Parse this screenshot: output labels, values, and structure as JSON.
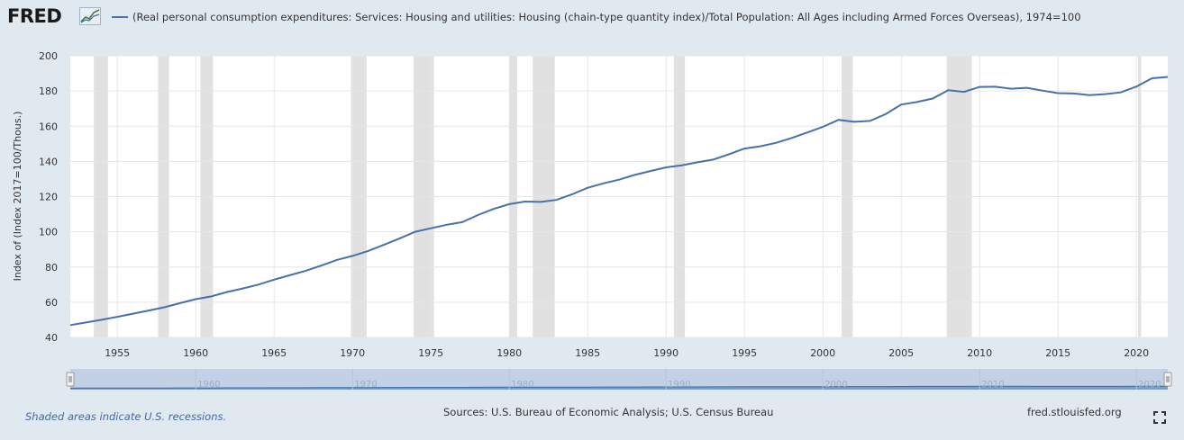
{
  "header": {
    "logo": "FRED",
    "logo_icon": "line-graph-icon",
    "legend_label": "(Real personal consumption expenditures: Services: Housing and utilities: Housing (chain-type quantity index)/Total Population: All Ages including Armed Forces Overseas), 1974=100"
  },
  "chart_data": {
    "type": "line",
    "ylabel": "Index of (Index 2017=100/Thous.)",
    "xlabel": "",
    "ylim": [
      40,
      200
    ],
    "xlim": [
      1952,
      2022
    ],
    "y_ticks": [
      "200",
      "180",
      "160",
      "140",
      "120",
      "100",
      "80",
      "60",
      "40"
    ],
    "x_ticks": [
      "1955",
      "1960",
      "1965",
      "1970",
      "1975",
      "1980",
      "1985",
      "1990",
      "1995",
      "2000",
      "2005",
      "2010",
      "2015",
      "2020"
    ],
    "navigator_ticks": [
      "1960",
      "1970",
      "1980",
      "1990",
      "2000",
      "2010",
      "2020"
    ],
    "grid": true,
    "line_color": "#4572a7",
    "recession_color": "#e1e1e1",
    "recessions": [
      [
        1953.5,
        1954.4
      ],
      [
        1957.6,
        1958.3
      ],
      [
        1960.3,
        1961.1
      ],
      [
        1969.9,
        1970.9
      ],
      [
        1973.9,
        1975.2
      ],
      [
        1980.0,
        1980.5
      ],
      [
        1981.5,
        1982.9
      ],
      [
        1990.5,
        1991.2
      ],
      [
        2001.2,
        2001.9
      ],
      [
        2007.9,
        2009.5
      ],
      [
        2020.1,
        2020.3
      ]
    ],
    "series": [
      {
        "x": [
          1952,
          1953,
          1954,
          1955,
          1956,
          1957,
          1958,
          1959,
          1960,
          1961,
          1962,
          1963,
          1964,
          1965,
          1966,
          1967,
          1968,
          1969,
          1970,
          1971,
          1972,
          1973,
          1974,
          1975,
          1976,
          1977,
          1978,
          1979,
          1980,
          1981,
          1982,
          1983,
          1984,
          1985,
          1986,
          1987,
          1988,
          1989,
          1990,
          1991,
          1992,
          1993,
          1994,
          1995,
          1996,
          1997,
          1998,
          1999,
          2000,
          2001,
          2002,
          2003,
          2004,
          2005,
          2006,
          2007,
          2008,
          2009,
          2010,
          2011,
          2012,
          2013,
          2014,
          2015,
          2016,
          2017,
          2018,
          2019,
          2020,
          2021,
          2022
        ],
        "values": [
          47,
          48.5,
          50,
          51.7,
          53.5,
          55.3,
          57.1,
          59.5,
          61.7,
          63.3,
          65.8,
          67.8,
          70,
          72.8,
          75.3,
          77.8,
          80.8,
          84,
          86.3,
          89.1,
          92.6,
          96.2,
          100,
          102,
          104,
          105.5,
          109.5,
          113,
          115.7,
          117.2,
          117,
          118.1,
          121.3,
          125,
          127.5,
          129.6,
          132.3,
          134.5,
          136.6,
          137.8,
          139.5,
          141,
          144,
          147.3,
          148.6,
          150.5,
          153.3,
          156.4,
          159.6,
          163.6,
          162.5,
          163,
          166.8,
          172.3,
          173.7,
          175.7,
          180.4,
          179.5,
          182.3,
          182.4,
          181.3,
          181.8,
          180.2,
          178.8,
          178.6,
          177.6,
          178.2,
          179.2,
          182.5,
          187.2,
          188
        ]
      }
    ]
  },
  "footer": {
    "note": "Shaded areas indicate U.S. recessions.",
    "sources": "Sources: U.S. Bureau of Economic Analysis; U.S. Census Bureau",
    "url": "fred.stlouisfed.org",
    "fullscreen_icon": "fullscreen-icon"
  }
}
